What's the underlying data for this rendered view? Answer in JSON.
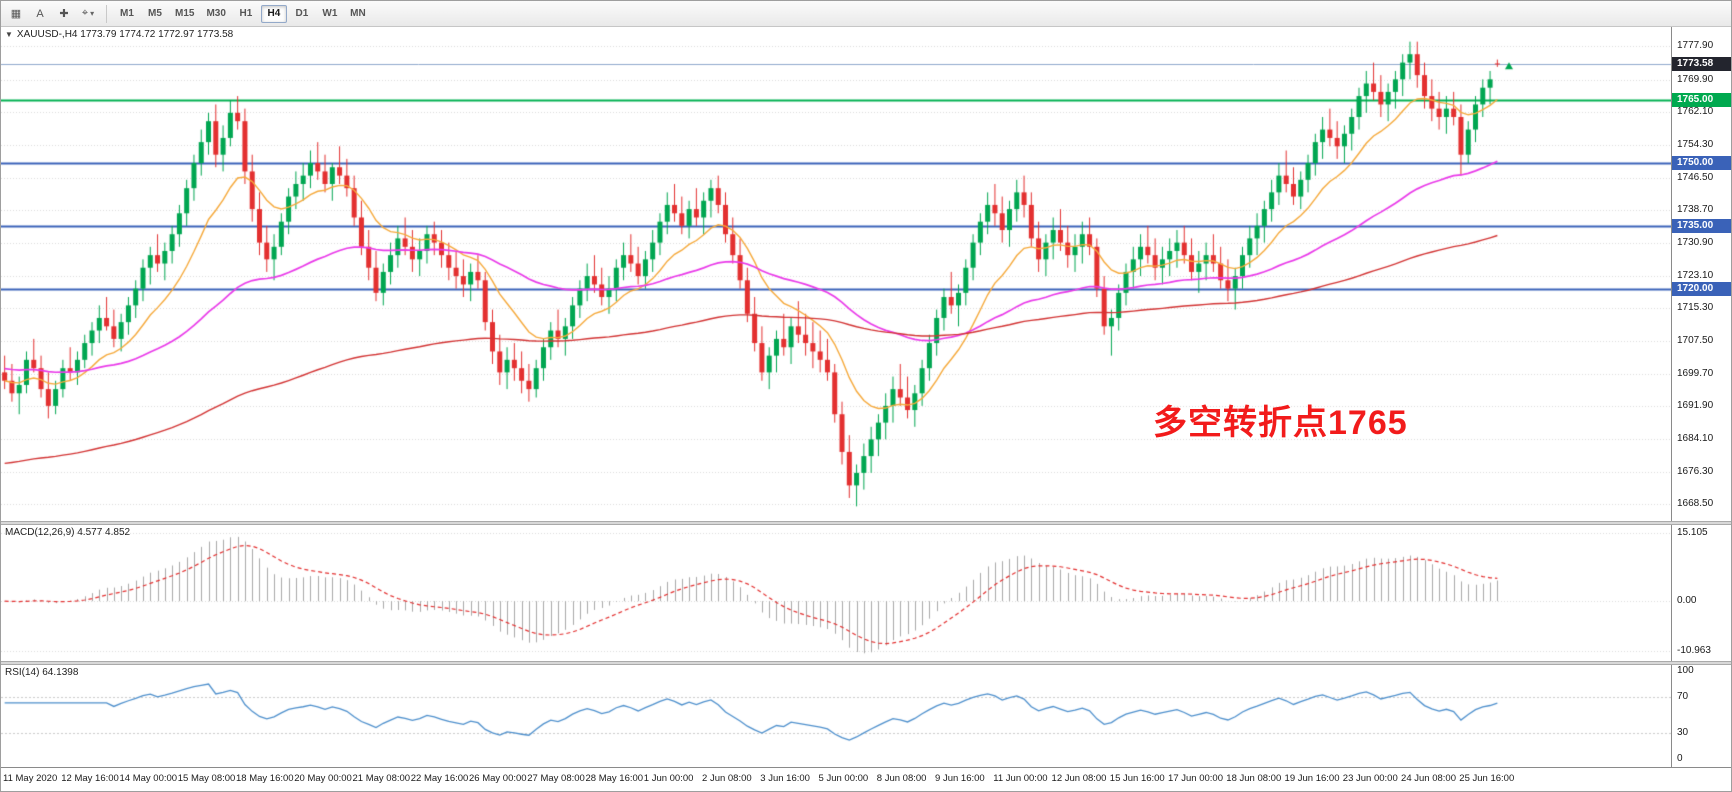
{
  "toolbar": {
    "icon_buttons": [
      {
        "name": "chart-tile-icon",
        "glyph": "▦"
      },
      {
        "name": "cursor-tool-icon",
        "glyph": "A"
      },
      {
        "name": "crosshair-icon",
        "glyph": "✚"
      },
      {
        "name": "line-tools-icon",
        "glyph": "⌖",
        "caret": "▾"
      }
    ],
    "timeframes": [
      "M1",
      "M5",
      "M15",
      "M30",
      "H1",
      "H4",
      "D1",
      "W1",
      "MN"
    ],
    "selected_timeframe": "H4"
  },
  "chart": {
    "collapse_icon": "▼",
    "symbol_line": "XAUUSD-,H4 1773.79 1774.72 1772.97 1773.58",
    "annotation": {
      "text": "多空转折点1765",
      "color": "#F21B1B"
    },
    "price_axis": {
      "ticks": [
        1777.9,
        1769.9,
        1762.1,
        1754.3,
        1746.5,
        1738.7,
        1730.9,
        1723.1,
        1715.3,
        1707.5,
        1699.7,
        1691.9,
        1684.1,
        1676.3,
        1668.5
      ],
      "tags": [
        {
          "value": "1773.58",
          "bg": "#23252E"
        },
        {
          "value": "1765.00",
          "bg": "#00A94F"
        },
        {
          "value": "1750.00",
          "bg": "#3A62B8"
        },
        {
          "value": "1735.00",
          "bg": "#3A62B8"
        },
        {
          "value": "1720.00",
          "bg": "#3A62B8"
        }
      ]
    },
    "hlines": [
      {
        "price": 1773.58,
        "color": "#8FA8CC",
        "width": 1
      },
      {
        "price": 1765.0,
        "color": "#00B050",
        "width": 2
      },
      {
        "price": 1750.0,
        "color": "#3A62B8",
        "width": 2
      },
      {
        "price": 1735.0,
        "color": "#3A62B8",
        "width": 2
      },
      {
        "price": 1720.0,
        "color": "#3A62B8",
        "width": 2
      }
    ],
    "colors": {
      "bull": "#00A651",
      "bear": "#E33030",
      "ma_fast": "#F5A93B",
      "ma_mid": "#E93BE9",
      "ma_slow": "#D23333",
      "macd_hist": "#A8A8A8",
      "macd_signal": "#E33030",
      "rsi_line": "#4D8FCC"
    }
  },
  "macd": {
    "label": "MACD(12,26,9) 4.577 4.852",
    "ticks": [
      "15.105",
      "0.00",
      "-10.963"
    ]
  },
  "rsi": {
    "label": "RSI(14) 64.1398",
    "ticks": [
      "100",
      "70",
      "30",
      "0"
    ]
  },
  "chart_data": {
    "type": "candlestick",
    "symbol": "XAUUSD-",
    "timeframe": "H4",
    "current_ohlc": {
      "open": 1773.79,
      "high": 1774.72,
      "low": 1772.97,
      "close": 1773.58
    },
    "y_range": [
      1664.5,
      1782.5
    ],
    "time_labels": [
      "11 May 2020",
      "12 May 16:00",
      "14 May 00:00",
      "15 May 08:00",
      "18 May 16:00",
      "20 May 00:00",
      "21 May 08:00",
      "22 May 16:00",
      "26 May 00:00",
      "27 May 08:00",
      "28 May 16:00",
      "1 Jun 00:00",
      "2 Jun 08:00",
      "3 Jun 16:00",
      "5 Jun 00:00",
      "8 Jun 08:00",
      "9 Jun 16:00",
      "11 Jun 00:00",
      "12 Jun 08:00",
      "15 Jun 16:00",
      "17 Jun 00:00",
      "18 Jun 08:00",
      "19 Jun 16:00",
      "23 Jun 00:00",
      "24 Jun 08:00",
      "25 Jun 16:00"
    ],
    "overlays": [
      {
        "name": "ma-fast",
        "period": 13,
        "seed": null
      },
      {
        "name": "ma-mid",
        "period": 55,
        "seed": 1701
      },
      {
        "name": "ma-slow",
        "period": 150,
        "seed": 1678
      }
    ],
    "indicators": [
      {
        "type": "MACD",
        "params": [
          12,
          26,
          9
        ],
        "current": [
          4.577,
          4.852
        ],
        "range": [
          -10.963,
          15.105
        ]
      },
      {
        "type": "RSI",
        "period": 14,
        "current": 64.1398,
        "levels": [
          70,
          30
        ]
      }
    ],
    "ohlc": [
      [
        1700,
        1704,
        1696,
        1698
      ],
      [
        1698,
        1702,
        1693,
        1695
      ],
      [
        1695,
        1699,
        1690,
        1697
      ],
      [
        1697,
        1705,
        1695,
        1703
      ],
      [
        1703,
        1708,
        1700,
        1701
      ],
      [
        1701,
        1704,
        1694,
        1696
      ],
      [
        1696,
        1700,
        1689,
        1692
      ],
      [
        1692,
        1698,
        1690,
        1696
      ],
      [
        1696,
        1703,
        1694,
        1701
      ],
      [
        1701,
        1706,
        1698,
        1700
      ],
      [
        1700,
        1705,
        1697,
        1703
      ],
      [
        1703,
        1709,
        1701,
        1707
      ],
      [
        1707,
        1712,
        1704,
        1710
      ],
      [
        1710,
        1716,
        1707,
        1713
      ],
      [
        1713,
        1718,
        1710,
        1711
      ],
      [
        1711,
        1715,
        1706,
        1708
      ],
      [
        1708,
        1714,
        1705,
        1712
      ],
      [
        1712,
        1718,
        1709,
        1716
      ],
      [
        1716,
        1722,
        1713,
        1720
      ],
      [
        1720,
        1727,
        1717,
        1725
      ],
      [
        1725,
        1730,
        1721,
        1728
      ],
      [
        1728,
        1733,
        1724,
        1726
      ],
      [
        1726,
        1731,
        1722,
        1729
      ],
      [
        1729,
        1735,
        1726,
        1733
      ],
      [
        1733,
        1740,
        1730,
        1738
      ],
      [
        1738,
        1746,
        1735,
        1744
      ],
      [
        1744,
        1752,
        1741,
        1750
      ],
      [
        1750,
        1758,
        1747,
        1755
      ],
      [
        1755,
        1762,
        1752,
        1760
      ],
      [
        1760,
        1764,
        1749,
        1752
      ],
      [
        1752,
        1759,
        1748,
        1756
      ],
      [
        1756,
        1765,
        1754,
        1762
      ],
      [
        1762,
        1766,
        1758,
        1760
      ],
      [
        1760,
        1763,
        1745,
        1748
      ],
      [
        1748,
        1752,
        1736,
        1739
      ],
      [
        1739,
        1743,
        1728,
        1731
      ],
      [
        1731,
        1735,
        1724,
        1727
      ],
      [
        1727,
        1733,
        1722,
        1730
      ],
      [
        1730,
        1738,
        1728,
        1736
      ],
      [
        1736,
        1744,
        1733,
        1742
      ],
      [
        1742,
        1748,
        1739,
        1745
      ],
      [
        1745,
        1750,
        1741,
        1747
      ],
      [
        1747,
        1753,
        1744,
        1750
      ],
      [
        1750,
        1755,
        1746,
        1748
      ],
      [
        1748,
        1752,
        1743,
        1745
      ],
      [
        1745,
        1750,
        1741,
        1749
      ],
      [
        1749,
        1754,
        1745,
        1747
      ],
      [
        1747,
        1751,
        1742,
        1744
      ],
      [
        1744,
        1747,
        1735,
        1737
      ],
      [
        1737,
        1741,
        1728,
        1730
      ],
      [
        1730,
        1734,
        1722,
        1725
      ],
      [
        1725,
        1729,
        1717,
        1719
      ],
      [
        1719,
        1726,
        1716,
        1724
      ],
      [
        1724,
        1731,
        1721,
        1728
      ],
      [
        1728,
        1735,
        1725,
        1732
      ],
      [
        1732,
        1737,
        1728,
        1730
      ],
      [
        1730,
        1734,
        1724,
        1727
      ],
      [
        1727,
        1732,
        1723,
        1729
      ],
      [
        1729,
        1735,
        1726,
        1733
      ],
      [
        1733,
        1736,
        1728,
        1731
      ],
      [
        1731,
        1734,
        1725,
        1728
      ],
      [
        1728,
        1731,
        1722,
        1725
      ],
      [
        1725,
        1729,
        1720,
        1723
      ],
      [
        1723,
        1727,
        1718,
        1721
      ],
      [
        1721,
        1726,
        1717,
        1724
      ],
      [
        1724,
        1728,
        1720,
        1722
      ],
      [
        1722,
        1724,
        1710,
        1712
      ],
      [
        1712,
        1715,
        1702,
        1705
      ],
      [
        1705,
        1709,
        1697,
        1700
      ],
      [
        1700,
        1706,
        1696,
        1703
      ],
      [
        1703,
        1707,
        1698,
        1701
      ],
      [
        1701,
        1705,
        1695,
        1698
      ],
      [
        1698,
        1702,
        1693,
        1696
      ],
      [
        1696,
        1703,
        1694,
        1701
      ],
      [
        1701,
        1708,
        1698,
        1706
      ],
      [
        1706,
        1712,
        1703,
        1710
      ],
      [
        1710,
        1715,
        1706,
        1708
      ],
      [
        1708,
        1713,
        1704,
        1711
      ],
      [
        1711,
        1718,
        1708,
        1716
      ],
      [
        1716,
        1722,
        1713,
        1720
      ],
      [
        1720,
        1726,
        1717,
        1723
      ],
      [
        1723,
        1728,
        1719,
        1721
      ],
      [
        1721,
        1725,
        1716,
        1718
      ],
      [
        1718,
        1723,
        1714,
        1720
      ],
      [
        1720,
        1727,
        1717,
        1725
      ],
      [
        1725,
        1731,
        1722,
        1728
      ],
      [
        1728,
        1733,
        1724,
        1726
      ],
      [
        1726,
        1730,
        1721,
        1723
      ],
      [
        1723,
        1729,
        1720,
        1727
      ],
      [
        1727,
        1734,
        1724,
        1731
      ],
      [
        1731,
        1738,
        1728,
        1736
      ],
      [
        1736,
        1743,
        1733,
        1740
      ],
      [
        1740,
        1745,
        1736,
        1738
      ],
      [
        1738,
        1742,
        1733,
        1735
      ],
      [
        1735,
        1741,
        1732,
        1739
      ],
      [
        1739,
        1744,
        1735,
        1737
      ],
      [
        1737,
        1743,
        1733,
        1741
      ],
      [
        1741,
        1746,
        1737,
        1744
      ],
      [
        1744,
        1747,
        1738,
        1740
      ],
      [
        1740,
        1743,
        1731,
        1733
      ],
      [
        1733,
        1737,
        1726,
        1728
      ],
      [
        1728,
        1732,
        1720,
        1722
      ],
      [
        1722,
        1725,
        1712,
        1714
      ],
      [
        1714,
        1718,
        1705,
        1707
      ],
      [
        1707,
        1711,
        1698,
        1700
      ],
      [
        1700,
        1706,
        1696,
        1704
      ],
      [
        1704,
        1710,
        1700,
        1708
      ],
      [
        1708,
        1714,
        1704,
        1706
      ],
      [
        1706,
        1713,
        1702,
        1711
      ],
      [
        1711,
        1717,
        1707,
        1709
      ],
      [
        1709,
        1714,
        1704,
        1707
      ],
      [
        1707,
        1712,
        1701,
        1705
      ],
      [
        1705,
        1710,
        1700,
        1703
      ],
      [
        1703,
        1708,
        1698,
        1700
      ],
      [
        1700,
        1702,
        1688,
        1690
      ],
      [
        1690,
        1693,
        1678,
        1681
      ],
      [
        1681,
        1685,
        1670,
        1673
      ],
      [
        1673,
        1678,
        1668,
        1676
      ],
      [
        1676,
        1683,
        1672,
        1680
      ],
      [
        1680,
        1687,
        1676,
        1684
      ],
      [
        1684,
        1690,
        1680,
        1688
      ],
      [
        1688,
        1695,
        1684,
        1692
      ],
      [
        1692,
        1699,
        1688,
        1696
      ],
      [
        1696,
        1702,
        1692,
        1694
      ],
      [
        1694,
        1699,
        1689,
        1691
      ],
      [
        1691,
        1697,
        1687,
        1695
      ],
      [
        1695,
        1703,
        1692,
        1701
      ],
      [
        1701,
        1709,
        1698,
        1707
      ],
      [
        1707,
        1715,
        1704,
        1713
      ],
      [
        1713,
        1720,
        1710,
        1718
      ],
      [
        1718,
        1724,
        1714,
        1716
      ],
      [
        1716,
        1721,
        1711,
        1719
      ],
      [
        1719,
        1727,
        1716,
        1725
      ],
      [
        1725,
        1733,
        1722,
        1731
      ],
      [
        1731,
        1738,
        1728,
        1736
      ],
      [
        1736,
        1743,
        1733,
        1740
      ],
      [
        1740,
        1745,
        1735,
        1738
      ],
      [
        1738,
        1742,
        1731,
        1734
      ],
      [
        1734,
        1741,
        1730,
        1739
      ],
      [
        1739,
        1746,
        1736,
        1743
      ],
      [
        1743,
        1747,
        1737,
        1740
      ],
      [
        1740,
        1743,
        1730,
        1732
      ],
      [
        1732,
        1736,
        1724,
        1727
      ],
      [
        1727,
        1733,
        1723,
        1731
      ],
      [
        1731,
        1737,
        1727,
        1734
      ],
      [
        1734,
        1739,
        1729,
        1731
      ],
      [
        1731,
        1735,
        1725,
        1728
      ],
      [
        1728,
        1733,
        1724,
        1730
      ],
      [
        1730,
        1736,
        1726,
        1733
      ],
      [
        1733,
        1737,
        1728,
        1730
      ],
      [
        1730,
        1732,
        1718,
        1720
      ],
      [
        1720,
        1723,
        1709,
        1711
      ],
      [
        1711,
        1715,
        1704,
        1713
      ],
      [
        1713,
        1721,
        1710,
        1719
      ],
      [
        1719,
        1726,
        1716,
        1724
      ],
      [
        1724,
        1730,
        1720,
        1727
      ],
      [
        1727,
        1733,
        1723,
        1730
      ],
      [
        1730,
        1735,
        1726,
        1728
      ],
      [
        1728,
        1732,
        1722,
        1725
      ],
      [
        1725,
        1730,
        1721,
        1727
      ],
      [
        1727,
        1732,
        1723,
        1729
      ],
      [
        1729,
        1734,
        1725,
        1731
      ],
      [
        1731,
        1735,
        1726,
        1728
      ],
      [
        1728,
        1732,
        1722,
        1724
      ],
      [
        1724,
        1729,
        1719,
        1726
      ],
      [
        1726,
        1731,
        1722,
        1728
      ],
      [
        1728,
        1733,
        1724,
        1726
      ],
      [
        1726,
        1730,
        1720,
        1722
      ],
      [
        1722,
        1727,
        1717,
        1720
      ],
      [
        1720,
        1725,
        1715,
        1723
      ],
      [
        1723,
        1730,
        1720,
        1728
      ],
      [
        1728,
        1735,
        1725,
        1732
      ],
      [
        1732,
        1738,
        1728,
        1735
      ],
      [
        1735,
        1741,
        1731,
        1739
      ],
      [
        1739,
        1746,
        1736,
        1743
      ],
      [
        1743,
        1750,
        1740,
        1747
      ],
      [
        1747,
        1753,
        1743,
        1745
      ],
      [
        1745,
        1749,
        1740,
        1742
      ],
      [
        1742,
        1748,
        1739,
        1746
      ],
      [
        1746,
        1752,
        1743,
        1750
      ],
      [
        1750,
        1757,
        1747,
        1755
      ],
      [
        1755,
        1761,
        1751,
        1758
      ],
      [
        1758,
        1763,
        1754,
        1756
      ],
      [
        1756,
        1760,
        1751,
        1754
      ],
      [
        1754,
        1759,
        1750,
        1757
      ],
      [
        1757,
        1763,
        1753,
        1761
      ],
      [
        1761,
        1768,
        1758,
        1766
      ],
      [
        1766,
        1772,
        1762,
        1769
      ],
      [
        1769,
        1774,
        1765,
        1767
      ],
      [
        1767,
        1771,
        1761,
        1764
      ],
      [
        1764,
        1769,
        1760,
        1767
      ],
      [
        1767,
        1772,
        1763,
        1770
      ],
      [
        1770,
        1776,
        1766,
        1774
      ],
      [
        1774,
        1779,
        1770,
        1776
      ],
      [
        1776,
        1779,
        1768,
        1771
      ],
      [
        1771,
        1774,
        1763,
        1766
      ],
      [
        1766,
        1770,
        1760,
        1763
      ],
      [
        1763,
        1767,
        1758,
        1761
      ],
      [
        1761,
        1766,
        1757,
        1763
      ],
      [
        1763,
        1767,
        1759,
        1761
      ],
      [
        1761,
        1764,
        1747,
        1752
      ],
      [
        1752,
        1760,
        1750,
        1758
      ],
      [
        1758,
        1766,
        1755,
        1764
      ],
      [
        1764,
        1770,
        1761,
        1768
      ],
      [
        1768,
        1772,
        1764,
        1770
      ],
      [
        1773.79,
        1774.72,
        1772.97,
        1773.58
      ]
    ]
  }
}
